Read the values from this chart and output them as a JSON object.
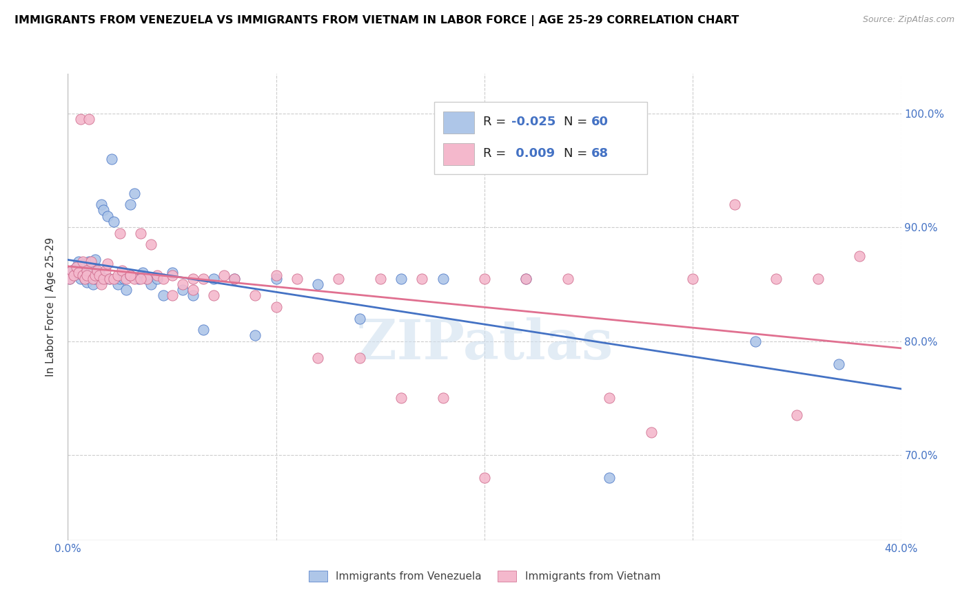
{
  "title": "IMMIGRANTS FROM VENEZUELA VS IMMIGRANTS FROM VIETNAM IN LABOR FORCE | AGE 25-29 CORRELATION CHART",
  "source": "Source: ZipAtlas.com",
  "ylabel": "In Labor Force | Age 25-29",
  "xlim": [
    0.0,
    0.4
  ],
  "ylim": [
    0.625,
    1.035
  ],
  "color_venezuela": "#aec6e8",
  "color_vietnam": "#f4b8cc",
  "trendline_color_venezuela": "#4472c4",
  "trendline_color_vietnam": "#e07090",
  "watermark": "ZIPatlas",
  "legend_r1": "-0.025",
  "legend_n1": "60",
  "legend_r2": "0.009",
  "legend_n2": "68",
  "venezuela_x": [
    0.001,
    0.002,
    0.003,
    0.004,
    0.005,
    0.005,
    0.006,
    0.007,
    0.007,
    0.008,
    0.008,
    0.009,
    0.009,
    0.01,
    0.01,
    0.011,
    0.011,
    0.012,
    0.012,
    0.013,
    0.013,
    0.014,
    0.015,
    0.015,
    0.016,
    0.017,
    0.018,
    0.019,
    0.02,
    0.021,
    0.022,
    0.023,
    0.024,
    0.025,
    0.027,
    0.028,
    0.03,
    0.032,
    0.034,
    0.036,
    0.038,
    0.04,
    0.043,
    0.046,
    0.05,
    0.055,
    0.06,
    0.065,
    0.07,
    0.08,
    0.09,
    0.1,
    0.12,
    0.14,
    0.16,
    0.18,
    0.22,
    0.26,
    0.33,
    0.37
  ],
  "venezuela_y": [
    0.855,
    0.862,
    0.858,
    0.865,
    0.86,
    0.87,
    0.855,
    0.862,
    0.858,
    0.868,
    0.855,
    0.852,
    0.86,
    0.855,
    0.87,
    0.858,
    0.862,
    0.85,
    0.865,
    0.872,
    0.855,
    0.858,
    0.86,
    0.855,
    0.92,
    0.915,
    0.855,
    0.91,
    0.855,
    0.96,
    0.905,
    0.855,
    0.85,
    0.855,
    0.855,
    0.845,
    0.92,
    0.93,
    0.855,
    0.86,
    0.855,
    0.85,
    0.855,
    0.84,
    0.86,
    0.845,
    0.84,
    0.81,
    0.855,
    0.855,
    0.805,
    0.855,
    0.85,
    0.82,
    0.855,
    0.855,
    0.855,
    0.68,
    0.8,
    0.78
  ],
  "vietnam_x": [
    0.001,
    0.002,
    0.003,
    0.004,
    0.005,
    0.006,
    0.007,
    0.007,
    0.008,
    0.009,
    0.009,
    0.01,
    0.011,
    0.012,
    0.013,
    0.014,
    0.015,
    0.016,
    0.017,
    0.018,
    0.019,
    0.02,
    0.022,
    0.024,
    0.026,
    0.028,
    0.03,
    0.032,
    0.035,
    0.038,
    0.04,
    0.043,
    0.046,
    0.05,
    0.055,
    0.06,
    0.065,
    0.07,
    0.075,
    0.08,
    0.09,
    0.1,
    0.11,
    0.12,
    0.13,
    0.14,
    0.15,
    0.16,
    0.17,
    0.18,
    0.2,
    0.22,
    0.24,
    0.26,
    0.28,
    0.3,
    0.32,
    0.34,
    0.36,
    0.38,
    0.025,
    0.03,
    0.035,
    0.05,
    0.06,
    0.1,
    0.2,
    0.35
  ],
  "vietnam_y": [
    0.855,
    0.862,
    0.858,
    0.865,
    0.86,
    0.995,
    0.858,
    0.87,
    0.855,
    0.862,
    0.858,
    0.995,
    0.87,
    0.855,
    0.858,
    0.862,
    0.858,
    0.85,
    0.855,
    0.862,
    0.868,
    0.855,
    0.855,
    0.858,
    0.862,
    0.855,
    0.858,
    0.855,
    0.895,
    0.855,
    0.885,
    0.858,
    0.855,
    0.858,
    0.85,
    0.845,
    0.855,
    0.84,
    0.858,
    0.855,
    0.84,
    0.858,
    0.855,
    0.785,
    0.855,
    0.785,
    0.855,
    0.75,
    0.855,
    0.75,
    0.855,
    0.855,
    0.855,
    0.75,
    0.72,
    0.855,
    0.92,
    0.855,
    0.855,
    0.875,
    0.895,
    0.858,
    0.855,
    0.84,
    0.855,
    0.83,
    0.68,
    0.735
  ]
}
